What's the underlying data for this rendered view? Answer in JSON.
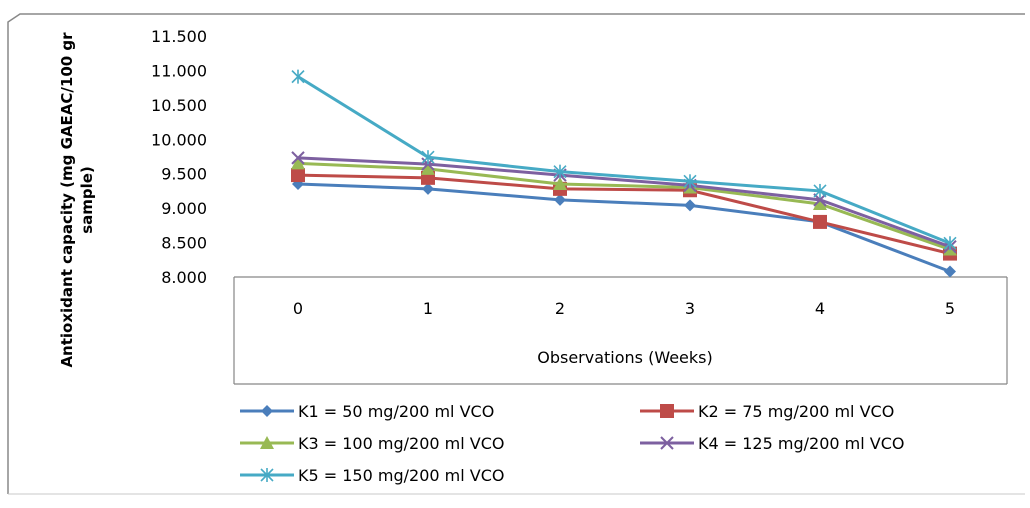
{
  "chart_data": {
    "type": "line",
    "xlabel": "Observations (Weeks)",
    "ylabel_line1": "Antioxidant capacity (mg GAEAC/100 gr",
    "ylabel_line2": "sample)",
    "categories": [
      "0",
      "1",
      "2",
      "3",
      "4",
      "5"
    ],
    "ylim": [
      8.0,
      11.5
    ],
    "yticks": [
      "11.500",
      "11.000",
      "10.500",
      "10.000",
      "9.500",
      "9.000",
      "8.500",
      "8.000"
    ],
    "ytick_values": [
      11.5,
      11.0,
      10.5,
      10.0,
      9.5,
      9.0,
      8.5,
      8.0
    ],
    "grid": false,
    "legend_position": "bottom",
    "series": [
      {
        "name": "K1 = 50 mg/200 ml VCO",
        "color": "#4a7ebb",
        "marker": "diamond",
        "values": [
          9.35,
          9.28,
          9.12,
          9.04,
          8.8,
          8.08
        ]
      },
      {
        "name": "K2 = 75 mg/200 ml VCO",
        "color": "#be4b48",
        "marker": "square",
        "values": [
          9.48,
          9.44,
          9.28,
          9.26,
          8.8,
          8.34
        ]
      },
      {
        "name": "K3 = 100 mg/200 ml VCO",
        "color": "#98b954",
        "marker": "triangle",
        "values": [
          9.65,
          9.57,
          9.35,
          9.3,
          9.06,
          8.4
        ]
      },
      {
        "name": "K4 = 125 mg/200 ml VCO",
        "color": "#7d60a0",
        "marker": "x",
        "values": [
          9.73,
          9.64,
          9.48,
          9.33,
          9.12,
          8.44
        ]
      },
      {
        "name": "K5 = 150 mg/200 ml VCO",
        "color": "#46aac5",
        "marker": "star",
        "values": [
          10.91,
          9.74,
          9.53,
          9.39,
          9.25,
          8.49
        ]
      }
    ]
  }
}
